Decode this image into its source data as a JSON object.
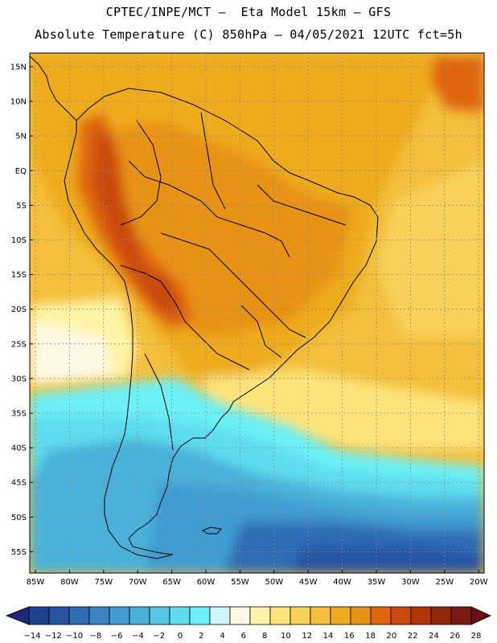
{
  "header": {
    "line1": "CPTEC/INPE/MCT –  Eta Model 15km – GFS",
    "line2": "Absolute Temperature (C) 850hPa – 04/05/2021 12UTC fct=5h"
  },
  "map": {
    "lat_labels": [
      "15N",
      "10N",
      "5N",
      "EQ",
      "5S",
      "10S",
      "15S",
      "20S",
      "25S",
      "30S",
      "35S",
      "40S",
      "45S",
      "50S",
      "55S"
    ],
    "lon_labels": [
      "85W",
      "80W",
      "75W",
      "70W",
      "65W",
      "60W",
      "55W",
      "50W",
      "45W",
      "40W",
      "35W",
      "30W",
      "25W",
      "20W"
    ]
  },
  "colorbar": {
    "labels": [
      "-14",
      "-12",
      "-10",
      "-8",
      "-6",
      "-4",
      "-2",
      "0",
      "2",
      "4",
      "6",
      "8",
      "10",
      "12",
      "14",
      "16",
      "18",
      "20",
      "22",
      "24",
      "26",
      "28"
    ],
    "colors": [
      "#1f3f8f",
      "#2653a3",
      "#2f6cb4",
      "#3a84c3",
      "#3f9bd0",
      "#48b1da",
      "#55c6e4",
      "#5fdcee",
      "#6cf0f6",
      "#ccf6fb",
      "#fff8e4",
      "#fff4a6",
      "#fde37a",
      "#f8d15a",
      "#f3bf3c",
      "#eeab1f",
      "#e89216",
      "#e0650f",
      "#c94a0a",
      "#b03508",
      "#922608",
      "#7a1a10"
    ],
    "low_arrow_color": "#1a2a7a",
    "high_arrow_color": "#6a0f1a"
  }
}
